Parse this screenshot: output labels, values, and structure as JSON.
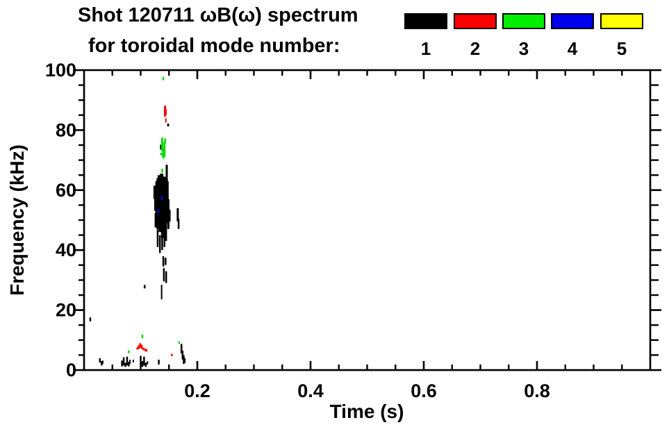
{
  "header": {
    "title": "Shot 120711 ωB(ω) spectrum",
    "subtitle": "for toroidal mode number:"
  },
  "legend": {
    "entries": [
      {
        "label": "1",
        "color": "#000000"
      },
      {
        "label": "2",
        "color": "#ff0000"
      },
      {
        "label": "3",
        "color": "#00ee00"
      },
      {
        "label": "4",
        "color": "#0000ee"
      },
      {
        "label": "5",
        "color": "#ffff00"
      }
    ]
  },
  "chart_data": {
    "type": "scatter",
    "title": "Shot 120711 ωB(ω) spectrum for toroidal mode number: 1 2 3 4 5",
    "xlabel": "Time (s)",
    "ylabel": "Frequency (kHz)",
    "xlim": [
      0,
      1.0
    ],
    "ylim": [
      0,
      100
    ],
    "grid": false,
    "legend_position": "top-right",
    "x_ticks": {
      "major": [
        {
          "v": 0.2,
          "label": "0.2"
        },
        {
          "v": 0.4,
          "label": "0.4"
        },
        {
          "v": 0.6,
          "label": "0.6"
        },
        {
          "v": 0.8,
          "label": "0.8"
        }
      ],
      "minor_step": 0.05
    },
    "y_ticks": {
      "major": [
        {
          "v": 0,
          "label": "0"
        },
        {
          "v": 20,
          "label": "20"
        },
        {
          "v": 40,
          "label": "40"
        },
        {
          "v": 60,
          "label": "60"
        },
        {
          "v": 80,
          "label": "80"
        },
        {
          "v": 100,
          "label": "100"
        }
      ],
      "minor_step": 5
    },
    "series": [
      {
        "name": "mode 1",
        "color": "#000000",
        "segments": [
          [
            0.125,
            57.0,
            61.5,
            4
          ],
          [
            0.1265,
            47.5,
            52.5,
            3
          ],
          [
            0.127,
            53.0,
            60.0,
            5
          ],
          [
            0.129,
            50.0,
            63.0,
            5
          ],
          [
            0.131,
            47.0,
            64.0,
            5
          ],
          [
            0.133,
            50.0,
            65.0,
            5
          ],
          [
            0.135,
            46.0,
            64.0,
            5
          ],
          [
            0.137,
            48.0,
            65.5,
            5
          ],
          [
            0.139,
            44.0,
            63.0,
            5
          ],
          [
            0.141,
            47.0,
            64.5,
            5
          ],
          [
            0.143,
            45.0,
            62.0,
            5
          ],
          [
            0.145,
            49.0,
            64.0,
            5
          ],
          [
            0.147,
            50.0,
            63.0,
            4
          ],
          [
            0.149,
            47.0,
            57.0,
            3
          ],
          [
            0.151,
            49.5,
            53.5,
            3
          ],
          [
            0.146,
            64.0,
            68.5,
            3
          ],
          [
            0.136,
            73.5,
            75.2,
            3
          ],
          [
            0.13,
            41.0,
            47.0,
            2.5
          ],
          [
            0.134,
            39.0,
            45.0,
            2.5
          ],
          [
            0.138,
            40.0,
            46.5,
            2.5
          ],
          [
            0.142,
            41.0,
            48.0,
            2.5
          ],
          [
            0.145,
            43.0,
            49.5,
            2.5
          ],
          [
            0.14,
            34.5,
            38.0,
            2.5
          ],
          [
            0.144,
            35.0,
            37.5,
            2.5
          ],
          [
            0.141,
            29.5,
            34.0,
            2.5
          ],
          [
            0.145,
            29.0,
            33.0,
            2.5
          ],
          [
            0.137,
            23.5,
            28.5,
            2
          ],
          [
            0.1655,
            49.5,
            54.0,
            3
          ],
          [
            0.167,
            47.0,
            50.5,
            2.5
          ],
          [
            0.107,
            27.2,
            28.4,
            2.5
          ],
          [
            0.011,
            16.2,
            17.6,
            2.5
          ],
          [
            0.028,
            2.5,
            4.0,
            2.5
          ],
          [
            0.031,
            1.5,
            3.0,
            2.5
          ],
          [
            0.033,
            2.0,
            3.2,
            2
          ],
          [
            0.067,
            1.2,
            3.2,
            2.5
          ],
          [
            0.07,
            1.5,
            4.3,
            2.5
          ],
          [
            0.073,
            1.0,
            2.5,
            2.5
          ],
          [
            0.076,
            1.5,
            4.5,
            2.5
          ],
          [
            0.079,
            1.2,
            2.8,
            2.5
          ],
          [
            0.081,
            2.0,
            3.5,
            2
          ],
          [
            0.087,
            2.5,
            3.5,
            2
          ],
          [
            0.1,
            1.5,
            4.8,
            2.5
          ],
          [
            0.103,
            1.0,
            3.0,
            2.5
          ],
          [
            0.106,
            1.5,
            4.5,
            2.5
          ],
          [
            0.109,
            1.0,
            2.5,
            2.5
          ],
          [
            0.112,
            1.8,
            3.0,
            2
          ],
          [
            0.132,
            1.8,
            3.5,
            2.5
          ],
          [
            0.172,
            5.5,
            8.8,
            2.5
          ],
          [
            0.174,
            3.5,
            6.5,
            2.5
          ],
          [
            0.176,
            2.0,
            5.0,
            2.5
          ],
          [
            0.178,
            2.3,
            4.0,
            2
          ]
        ],
        "points": [
          [
            0.1485,
            81.7
          ]
        ]
      },
      {
        "name": "mode 2",
        "color": "#ff0000",
        "segments": [
          [
            0.143,
            84.5,
            88.2,
            3
          ],
          [
            0.1445,
            85.0,
            87.0,
            2.5
          ],
          [
            0.1445,
            82.5,
            84.0,
            2
          ],
          [
            0.094,
            6.8,
            7.6,
            2.5
          ],
          [
            0.0965,
            7.0,
            8.3,
            2.5
          ],
          [
            0.099,
            7.3,
            9.0,
            2.5
          ],
          [
            0.102,
            7.0,
            8.5,
            2.5
          ],
          [
            0.105,
            6.5,
            7.5,
            2.5
          ],
          [
            0.108,
            6.3,
            7.2,
            2
          ],
          [
            0.155,
            4.6,
            5.4,
            2.5
          ]
        ],
        "points": [
          [
            0.11,
            6.6
          ]
        ]
      },
      {
        "name": "mode 3",
        "color": "#00dd00",
        "segments": [
          [
            0.14,
            96.6,
            97.8,
            2.5
          ],
          [
            0.138,
            73.0,
            77.5,
            3
          ],
          [
            0.14,
            70.5,
            74.0,
            3
          ],
          [
            0.142,
            71.0,
            76.0,
            3
          ],
          [
            0.1432,
            75.5,
            77.3,
            2.5
          ],
          [
            0.138,
            65.8,
            67.2,
            2.5
          ],
          [
            0.103,
            10.6,
            11.9,
            2.5
          ],
          [
            0.079,
            5.6,
            6.6,
            2.5
          ],
          [
            0.168,
            8.7,
            9.6,
            2.5
          ]
        ],
        "points": [
          [
            0.1365,
            72.0
          ]
        ]
      },
      {
        "name": "mode 4",
        "color": "#0000ee",
        "segments": [
          [
            0.1375,
            56.6,
            58.0,
            2.5
          ],
          [
            0.131,
            52.4,
            53.7,
            2.5
          ]
        ],
        "points": []
      },
      {
        "name": "mode 5",
        "color": "#ffff00",
        "segments": [],
        "points": []
      }
    ]
  }
}
